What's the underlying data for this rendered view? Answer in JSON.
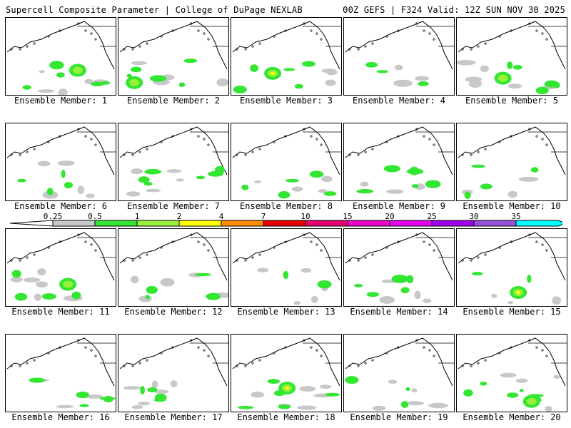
{
  "header": {
    "left": "Supercell Composite Parameter | College of DuPage NEXLAB",
    "right": "00Z GEFS | F324 Valid: 12Z SUN NOV 30 2025"
  },
  "members": [
    {
      "member": 1,
      "label": "Ensemble Member: 1"
    },
    {
      "member": 2,
      "label": "Ensemble Member: 2"
    },
    {
      "member": 3,
      "label": "Ensemble Member: 3"
    },
    {
      "member": 4,
      "label": "Ensemble Member: 4"
    },
    {
      "member": 5,
      "label": "Ensemble Member: 5"
    },
    {
      "member": 6,
      "label": "Ensemble Member: 6"
    },
    {
      "member": 7,
      "label": "Ensemble Member: 7"
    },
    {
      "member": 8,
      "label": "Ensemble Member: 8"
    },
    {
      "member": 9,
      "label": "Ensemble Member: 9"
    },
    {
      "member": 10,
      "label": "Ensemble Member: 10"
    },
    {
      "member": 11,
      "label": "Ensemble Member: 11"
    },
    {
      "member": 12,
      "label": "Ensemble Member: 12"
    },
    {
      "member": 13,
      "label": "Ensemble Member: 13"
    },
    {
      "member": 14,
      "label": "Ensemble Member: 14"
    },
    {
      "member": 15,
      "label": "Ensemble Member: 15"
    },
    {
      "member": 16,
      "label": "Ensemble Member: 16"
    },
    {
      "member": 17,
      "label": "Ensemble Member: 17"
    },
    {
      "member": 18,
      "label": "Ensemble Member: 18"
    },
    {
      "member": 19,
      "label": "Ensemble Member: 19"
    },
    {
      "member": 20,
      "label": "Ensemble Member: 20"
    }
  ],
  "colorbar": {
    "labels": [
      "0.25",
      "0.5",
      "1",
      "2",
      "4",
      "7",
      "10",
      "15",
      "20",
      "25",
      "30",
      "35"
    ],
    "colors": [
      "#c8c8c8",
      "#32e632",
      "#96f03c",
      "#ffff00",
      "#ff8c00",
      "#e60000",
      "#e6006e",
      "#f000c8",
      "#e600f0",
      "#a000f0",
      "#9650dc",
      "#00ffff"
    ]
  }
}
